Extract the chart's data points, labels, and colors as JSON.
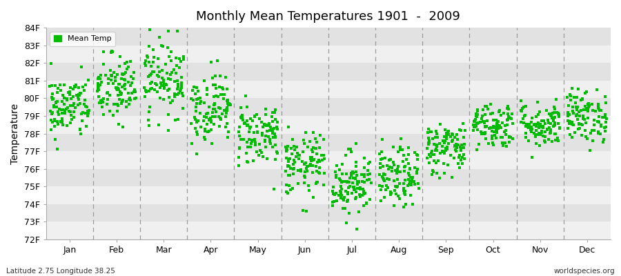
{
  "title": "Monthly Mean Temperatures 1901  -  2009",
  "ylabel": "Temperature",
  "xlabel": "",
  "ylim": [
    72,
    84
  ],
  "yticks": [
    72,
    73,
    74,
    75,
    76,
    77,
    78,
    79,
    80,
    81,
    82,
    83,
    84
  ],
  "ytick_labels": [
    "72F",
    "73F",
    "74F",
    "75F",
    "76F",
    "77F",
    "78F",
    "79F",
    "80F",
    "81F",
    "82F",
    "83F",
    "84F"
  ],
  "months": [
    "Jan",
    "Feb",
    "Mar",
    "Apr",
    "May",
    "Jun",
    "Jul",
    "Aug",
    "Sep",
    "Oct",
    "Nov",
    "Dec"
  ],
  "legend_label": "Mean Temp",
  "marker_color": "#00bb00",
  "bg_color": "#ffffff",
  "band_light": "#f0f0f0",
  "band_dark": "#e2e2e2",
  "subtitle_left": "Latitude 2.75 Longitude 38.25",
  "subtitle_right": "worldspecies.org",
  "monthly_means": [
    79.5,
    80.5,
    81.2,
    79.5,
    78.0,
    76.2,
    75.2,
    75.5,
    77.2,
    78.5,
    78.5,
    79.0
  ],
  "monthly_stds": [
    0.9,
    1.0,
    1.1,
    1.0,
    0.9,
    0.9,
    0.9,
    0.85,
    0.75,
    0.65,
    0.65,
    0.75
  ],
  "n_years": 109,
  "seed": 42
}
